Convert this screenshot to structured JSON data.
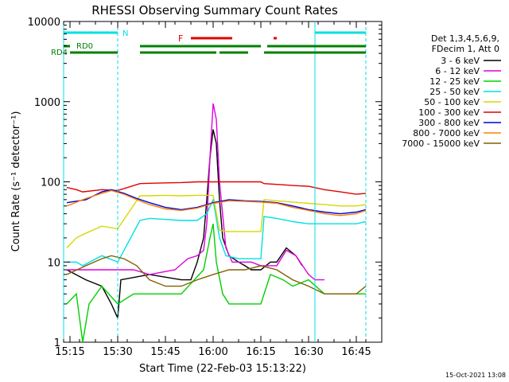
{
  "chart_data": {
    "type": "line",
    "title": "RHESSI Observing Summary Count Rates",
    "xlabel": "Start Time (22-Feb-03 15:13:22)",
    "ylabel": "Count Rate (s⁻¹ detector⁻¹)",
    "yscale": "log",
    "ylim": [
      1,
      10000
    ],
    "xlim": [
      "15:13",
      "16:53"
    ],
    "x_ticks": [
      "15:15",
      "15:30",
      "15:45",
      "16:00",
      "16:15",
      "16:30",
      "16:45"
    ],
    "y_ticks": [
      "1",
      "10",
      "100",
      "1000",
      "10000"
    ],
    "footer": "15-Oct-2021 13:08",
    "legend": {
      "header": [
        "Det 1,3,4,5,6,9,",
        "FDecim 1, Att 0"
      ],
      "position": "right"
    },
    "series": [
      {
        "name": "3 - 6 keV",
        "color": "#000000",
        "x": [
          "15:14",
          "15:20",
          "15:25",
          "15:28",
          "15:30",
          "15:31",
          "15:40",
          "15:50",
          "15:53",
          "15:55",
          "15:57",
          "15:58",
          "15:59",
          "16:00",
          "16:01",
          "16:02",
          "16:03",
          "16:05",
          "16:08",
          "16:10",
          "16:12",
          "16:15",
          "16:18",
          "16:20",
          "16:23",
          "16:26",
          "16:28"
        ],
        "y": [
          8,
          6,
          5,
          3,
          2,
          6,
          7,
          6,
          6,
          10,
          20,
          60,
          200,
          450,
          300,
          60,
          20,
          12,
          10,
          9,
          8,
          8,
          10,
          10,
          15,
          12,
          9
        ]
      },
      {
        "name": "6 - 12 keV",
        "color": "#e000e0",
        "x": [
          "15:14",
          "15:20",
          "15:25",
          "15:30",
          "15:35",
          "15:40",
          "15:48",
          "15:52",
          "15:55",
          "15:57",
          "15:58",
          "15:59",
          "16:00",
          "16:01",
          "16:02",
          "16:04",
          "16:06",
          "16:08",
          "16:12",
          "16:15",
          "16:20",
          "16:23",
          "16:26",
          "16:30",
          "16:32",
          "16:35"
        ],
        "y": [
          8,
          8,
          8,
          8,
          8,
          7,
          8,
          11,
          12,
          14,
          30,
          200,
          950,
          600,
          100,
          15,
          10,
          10,
          10,
          9,
          9,
          14,
          12,
          7,
          6,
          6
        ]
      },
      {
        "name": "12 - 25 keV",
        "color": "#00d000",
        "x": [
          "15:14",
          "15:17",
          "15:19",
          "15:21",
          "15:25",
          "15:30",
          "15:35",
          "15:40",
          "15:50",
          "15:57",
          "15:59",
          "16:00",
          "16:01",
          "16:03",
          "16:05",
          "16:08",
          "16:12",
          "16:15",
          "16:18",
          "16:22",
          "16:25",
          "16:30",
          "16:35",
          "16:40",
          "16:45",
          "16:48"
        ],
        "y": [
          3,
          4,
          1,
          3,
          5,
          3,
          4,
          4,
          4,
          8,
          20,
          30,
          10,
          4,
          3,
          3,
          3,
          3,
          7,
          6,
          5,
          6,
          4,
          4,
          4,
          4
        ]
      },
      {
        "name": "25 - 50 keV",
        "color": "#00e0e0",
        "x": [
          "15:14",
          "15:17",
          "15:19",
          "15:25",
          "15:30",
          "15:37",
          "15:40",
          "15:45",
          "15:50",
          "15:55",
          "15:58",
          "16:00",
          "16:02",
          "16:04",
          "16:08",
          "16:12",
          "16:15",
          "16:16",
          "16:20",
          "16:25",
          "16:30",
          "16:35",
          "16:40",
          "16:45",
          "16:48"
        ],
        "y": [
          10,
          10,
          9,
          12,
          10,
          33,
          35,
          34,
          33,
          33,
          40,
          60,
          20,
          12,
          11,
          11,
          11,
          37,
          35,
          32,
          30,
          30,
          30,
          30,
          32
        ]
      },
      {
        "name": "50 - 100 keV",
        "color": "#d8d800",
        "x": [
          "15:14",
          "15:17",
          "15:19",
          "15:25",
          "15:30",
          "15:37",
          "15:40",
          "15:45",
          "15:50",
          "15:55",
          "15:58",
          "16:00",
          "16:02",
          "16:04",
          "16:08",
          "16:12",
          "16:15",
          "16:16",
          "16:20",
          "16:25",
          "16:30",
          "16:35",
          "16:40",
          "16:45",
          "16:48"
        ],
        "y": [
          15,
          20,
          22,
          28,
          26,
          67,
          67,
          68,
          67,
          68,
          68,
          68,
          25,
          24,
          24,
          24,
          24,
          60,
          58,
          56,
          54,
          52,
          50,
          50,
          52
        ]
      },
      {
        "name": "100 - 300 keV",
        "color": "#e00000",
        "x": [
          "15:14",
          "15:17",
          "15:19",
          "15:25",
          "15:30",
          "15:37",
          "15:40",
          "15:45",
          "15:50",
          "15:55",
          "15:58",
          "16:00",
          "16:02",
          "16:04",
          "16:08",
          "16:12",
          "16:15",
          "16:16",
          "16:20",
          "16:25",
          "16:30",
          "16:35",
          "16:40",
          "16:45",
          "16:48"
        ],
        "y": [
          85,
          80,
          75,
          80,
          78,
          95,
          96,
          97,
          98,
          100,
          100,
          100,
          100,
          100,
          100,
          100,
          100,
          95,
          93,
          90,
          88,
          80,
          75,
          70,
          72
        ]
      },
      {
        "name": "300 - 800 keV",
        "color": "#0000e0",
        "x": [
          "15:14",
          "15:20",
          "15:25",
          "15:28",
          "15:32",
          "15:36",
          "15:40",
          "15:45",
          "15:50",
          "15:55",
          "16:00",
          "16:05",
          "16:10",
          "16:15",
          "16:20",
          "16:25",
          "16:30",
          "16:35",
          "16:40",
          "16:45",
          "16:48"
        ],
        "y": [
          55,
          60,
          75,
          80,
          72,
          62,
          55,
          48,
          45,
          48,
          55,
          60,
          58,
          57,
          55,
          50,
          45,
          42,
          40,
          42,
          45
        ]
      },
      {
        "name": "800 - 7000 keV",
        "color": "#ff8000",
        "x": [
          "15:14",
          "15:20",
          "15:25",
          "15:28",
          "15:32",
          "15:36",
          "15:40",
          "15:45",
          "15:50",
          "15:55",
          "16:00",
          "16:05",
          "16:10",
          "16:15",
          "16:20",
          "16:25",
          "16:30",
          "16:35",
          "16:40",
          "16:45",
          "16:48"
        ],
        "y": [
          50,
          62,
          72,
          78,
          70,
          60,
          52,
          46,
          44,
          47,
          54,
          58,
          57,
          56,
          54,
          48,
          44,
          40,
          38,
          40,
          44
        ]
      },
      {
        "name": "7000 - 15000 keV",
        "color": "#806000",
        "x": [
          "15:14",
          "15:20",
          "15:25",
          "15:28",
          "15:32",
          "15:36",
          "15:40",
          "15:45",
          "15:50",
          "15:55",
          "16:00",
          "16:05",
          "16:10",
          "16:15",
          "16:20",
          "16:25",
          "16:30",
          "16:35",
          "16:40",
          "16:45",
          "16:48"
        ],
        "y": [
          7,
          9,
          11,
          12,
          11,
          9,
          6,
          5,
          5,
          6,
          7,
          8,
          8,
          9,
          8,
          6,
          5,
          4,
          4,
          4,
          5
        ]
      }
    ],
    "annotations": {
      "night_label": "N",
      "flare_label": "F",
      "saa_label": "RD4",
      "decim_label": "RD0"
    }
  }
}
